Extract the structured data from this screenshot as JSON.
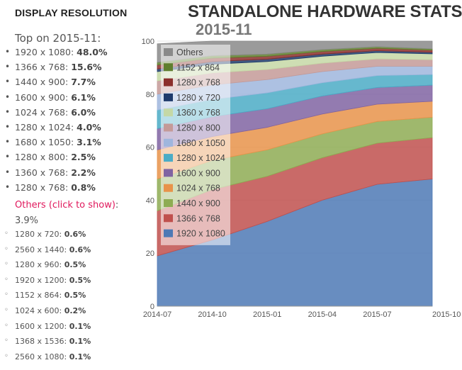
{
  "left_panel": {
    "section_title": "DISPLAY RESOLUTION",
    "top_label": "Top on 2015-11:",
    "top_items": [
      {
        "res": "1920 x 1080",
        "pct": "48.0%"
      },
      {
        "res": "1366 x 768",
        "pct": "15.6%"
      },
      {
        "res": "1440 x 900",
        "pct": "7.7%"
      },
      {
        "res": "1600 x 900",
        "pct": "6.1%"
      },
      {
        "res": "1024 x 768",
        "pct": "6.0%"
      },
      {
        "res": "1280 x 1024",
        "pct": "4.0%"
      },
      {
        "res": "1680 x 1050",
        "pct": "3.1%"
      },
      {
        "res": "1280 x 800",
        "pct": "2.5%"
      },
      {
        "res": "1360 x 768",
        "pct": "2.2%"
      },
      {
        "res": "1280 x 768",
        "pct": "0.8%"
      }
    ],
    "others_link": "Others (click to show)",
    "others_colon": ":",
    "others_pct": "3.9%",
    "other_items": [
      {
        "res": "1280 x 720",
        "pct": "0.6%"
      },
      {
        "res": "2560 x 1440",
        "pct": "0.6%"
      },
      {
        "res": "1280 x 960",
        "pct": "0.5%"
      },
      {
        "res": "1920 x 1200",
        "pct": "0.5%"
      },
      {
        "res": "1152 x 864",
        "pct": "0.5%"
      },
      {
        "res": "1024 x 600",
        "pct": "0.2%"
      },
      {
        "res": "1600 x 1200",
        "pct": "0.1%"
      },
      {
        "res": "1368 x 1536",
        "pct": "0.1%"
      },
      {
        "res": "2560 x 1080",
        "pct": "0.1%"
      }
    ]
  },
  "chart_data": {
    "type": "area",
    "stacked": true,
    "title": "STANDALONE HARDWARE STATS",
    "subtitle": "2015-11",
    "x": [
      "2014-07",
      "2014-10",
      "2015-01",
      "2015-04",
      "2015-07",
      "2015-10"
    ],
    "ylim": [
      0,
      100
    ],
    "yticks": [
      0,
      20,
      40,
      60,
      80,
      100
    ],
    "grid": true,
    "legend_position": "top-left",
    "series": [
      {
        "name": "1920 x 1080",
        "color": "#4e79b5",
        "values": [
          19,
          25,
          32,
          40,
          46,
          48
        ]
      },
      {
        "name": "1366 x 768",
        "color": "#c0504d",
        "values": [
          17,
          19,
          17,
          16,
          15.5,
          15.6
        ]
      },
      {
        "name": "1440 x 900",
        "color": "#8eac53",
        "values": [
          12,
          11,
          10,
          9,
          8.2,
          7.7
        ]
      },
      {
        "name": "1024 x 768",
        "color": "#e8934a",
        "values": [
          11,
          9,
          8.5,
          7.5,
          6.5,
          6.0
        ]
      },
      {
        "name": "1600 x 900",
        "color": "#8064a2",
        "values": [
          8,
          7.5,
          7,
          6.8,
          6.3,
          6.1
        ]
      },
      {
        "name": "1280 x 1024",
        "color": "#4bacc6",
        "values": [
          7,
          6.5,
          6,
          5,
          4.5,
          4.0
        ]
      },
      {
        "name": "1680 x 1050",
        "color": "#9fb6dd",
        "values": [
          6,
          5.5,
          5,
          4.2,
          3.5,
          3.1
        ]
      },
      {
        "name": "1280 x 800",
        "color": "#c49a98",
        "values": [
          5,
          4.5,
          3.8,
          3.2,
          2.8,
          2.5
        ]
      },
      {
        "name": "1360 x 768",
        "color": "#c5d8a6",
        "values": [
          3.5,
          3.3,
          3,
          2.6,
          2.4,
          2.2
        ]
      },
      {
        "name": "1280 x 720",
        "color": "#1f3b6b",
        "values": [
          1,
          1,
          0.9,
          0.8,
          0.7,
          0.6
        ]
      },
      {
        "name": "1280 x 768",
        "color": "#8b2f2c",
        "values": [
          1.5,
          1.3,
          1.1,
          1,
          0.9,
          0.8
        ]
      },
      {
        "name": "1152 x 864",
        "color": "#5f7f2e",
        "values": [
          1,
          0.9,
          0.8,
          0.7,
          0.6,
          0.5
        ]
      },
      {
        "name": "Others",
        "color": "#8a8a8a",
        "values": [
          7,
          5.5,
          4.9,
          3.2,
          2.1,
          2.9
        ]
      }
    ],
    "legend_order": [
      "Others",
      "1152 x 864",
      "1280 x 768",
      "1280 x 720",
      "1360 x 768",
      "1280 x 800",
      "1680 x 1050",
      "1280 x 1024",
      "1600 x 900",
      "1024 x 768",
      "1440 x 900",
      "1366 x 768",
      "1920 x 1080"
    ]
  }
}
